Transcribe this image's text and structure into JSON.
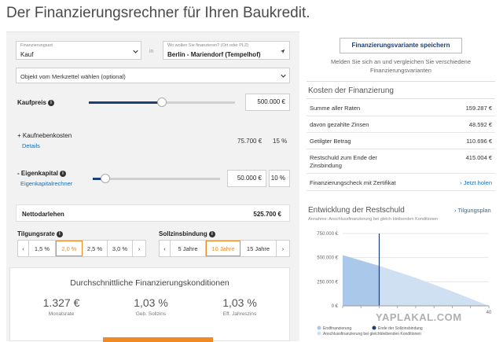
{
  "page": {
    "title": "Der Finanzierungsrechner für Ihren Baukredit."
  },
  "form": {
    "purpose": {
      "caption": "Finanzierungsart",
      "value": "Kauf"
    },
    "in_label": "in",
    "location": {
      "caption": "Wo wollen Sie finanzieren? (Ort oder PLZ)",
      "value": "Berlin - Mariendorf (Tempelhof)"
    },
    "object_select": "Objekt vom Merkzettel wählen (optional)",
    "kaufpreis": {
      "label": "Kaufpreis",
      "value": "500.000 €",
      "slider_fraction": 0.5
    },
    "nebenkosten": {
      "label": "+ Kaufnebenkosten",
      "details": "Details",
      "amount": "75.700 €",
      "percent": "15 %"
    },
    "eigenkapital": {
      "label": "- Eigenkapital",
      "link": "Eigenkapitalrechner",
      "value": "50.000 €",
      "percent": "10 %",
      "slider_fraction": 0.1
    },
    "nettodarlehen": {
      "label": "Nettodarlehen",
      "value": "525.700 €"
    },
    "tilgungsrate": {
      "label": "Tilgungsrate",
      "options": [
        "1,5 %",
        "2,0 %",
        "2,5 %",
        "3,0 %"
      ],
      "selected": "2,0 %"
    },
    "sollzinsbindung": {
      "label": "Sollzinsbindung",
      "options": [
        "5 Jahre",
        "10 Jahre",
        "15 Jahre"
      ],
      "selected": "10 Jahre"
    }
  },
  "conditions": {
    "title": "Durchschnittliche Finanzierungskonditionen",
    "items": [
      {
        "value": "1.327 €",
        "label": "Monatsrate"
      },
      {
        "value": "1,03 %",
        "label": "Geb. Sollzins"
      },
      {
        "value": "1,03 %",
        "label": "Eff. Jahreszins"
      }
    ]
  },
  "sidebar": {
    "save_button": "Finanzierungsvariante speichern",
    "save_hint_line1": "Melden Sie sich an und vergleichen Sie verschiedene",
    "save_hint_line2": "Finanzierungsvarianten",
    "costs_title": "Kosten der Finanzierung",
    "costs": [
      {
        "label": "Summe aller Raten",
        "value": "159.287 €"
      },
      {
        "label": "davon gezahlte Zinsen",
        "value": "48.592 €"
      },
      {
        "label": "Getilgter Betrag",
        "value": "110.696 €"
      },
      {
        "label": "Restschuld zum Ende der",
        "label2": "Zinsbindung",
        "value": "415.004 €"
      }
    ],
    "check": {
      "label": "Finanzierungscheck mit Zertifikat",
      "link": "› Jetzt holen"
    },
    "chart_title": "Entwicklung der Restschuld",
    "chart_link": "› Tilgungsplan",
    "chart_note": "Annahme: Anschlussfinanzierung bei gleich bleibenden Konditionen",
    "legend": [
      {
        "label": "Erstfinanzierung",
        "color": "#a9c8ea"
      },
      {
        "label": "Ende der Sollzinsbindung",
        "color": "#1c3f74"
      },
      {
        "label": "Anschlussfinanzierung bei gleichbleibenden Konditionen",
        "color": "#cfe0f3"
      }
    ]
  },
  "chart_data": {
    "type": "area",
    "title": "Entwicklung der Restschuld",
    "ylabel": "",
    "y_ticks": [
      "750.000 €",
      "500.000 €",
      "250.000 €",
      "0 €"
    ],
    "ylim": [
      0,
      750000
    ],
    "x_ticks": [
      "",
      "",
      "",
      "",
      "",
      "",
      "",
      "",
      "40"
    ],
    "xlim": [
      0,
      40
    ],
    "series": [
      {
        "name": "Erstfinanzierung",
        "x": [
          0,
          10
        ],
        "y": [
          525700,
          415004
        ]
      },
      {
        "name": "Anschlussfinanzierung bei gleichbleibenden Konditionen",
        "x": [
          10,
          20,
          30,
          40
        ],
        "y": [
          415004,
          290000,
          150000,
          0
        ]
      }
    ],
    "marker": {
      "name": "Ende der Sollzinsbindung",
      "x": 10
    }
  },
  "watermark": "YAPLAKAL.COM"
}
